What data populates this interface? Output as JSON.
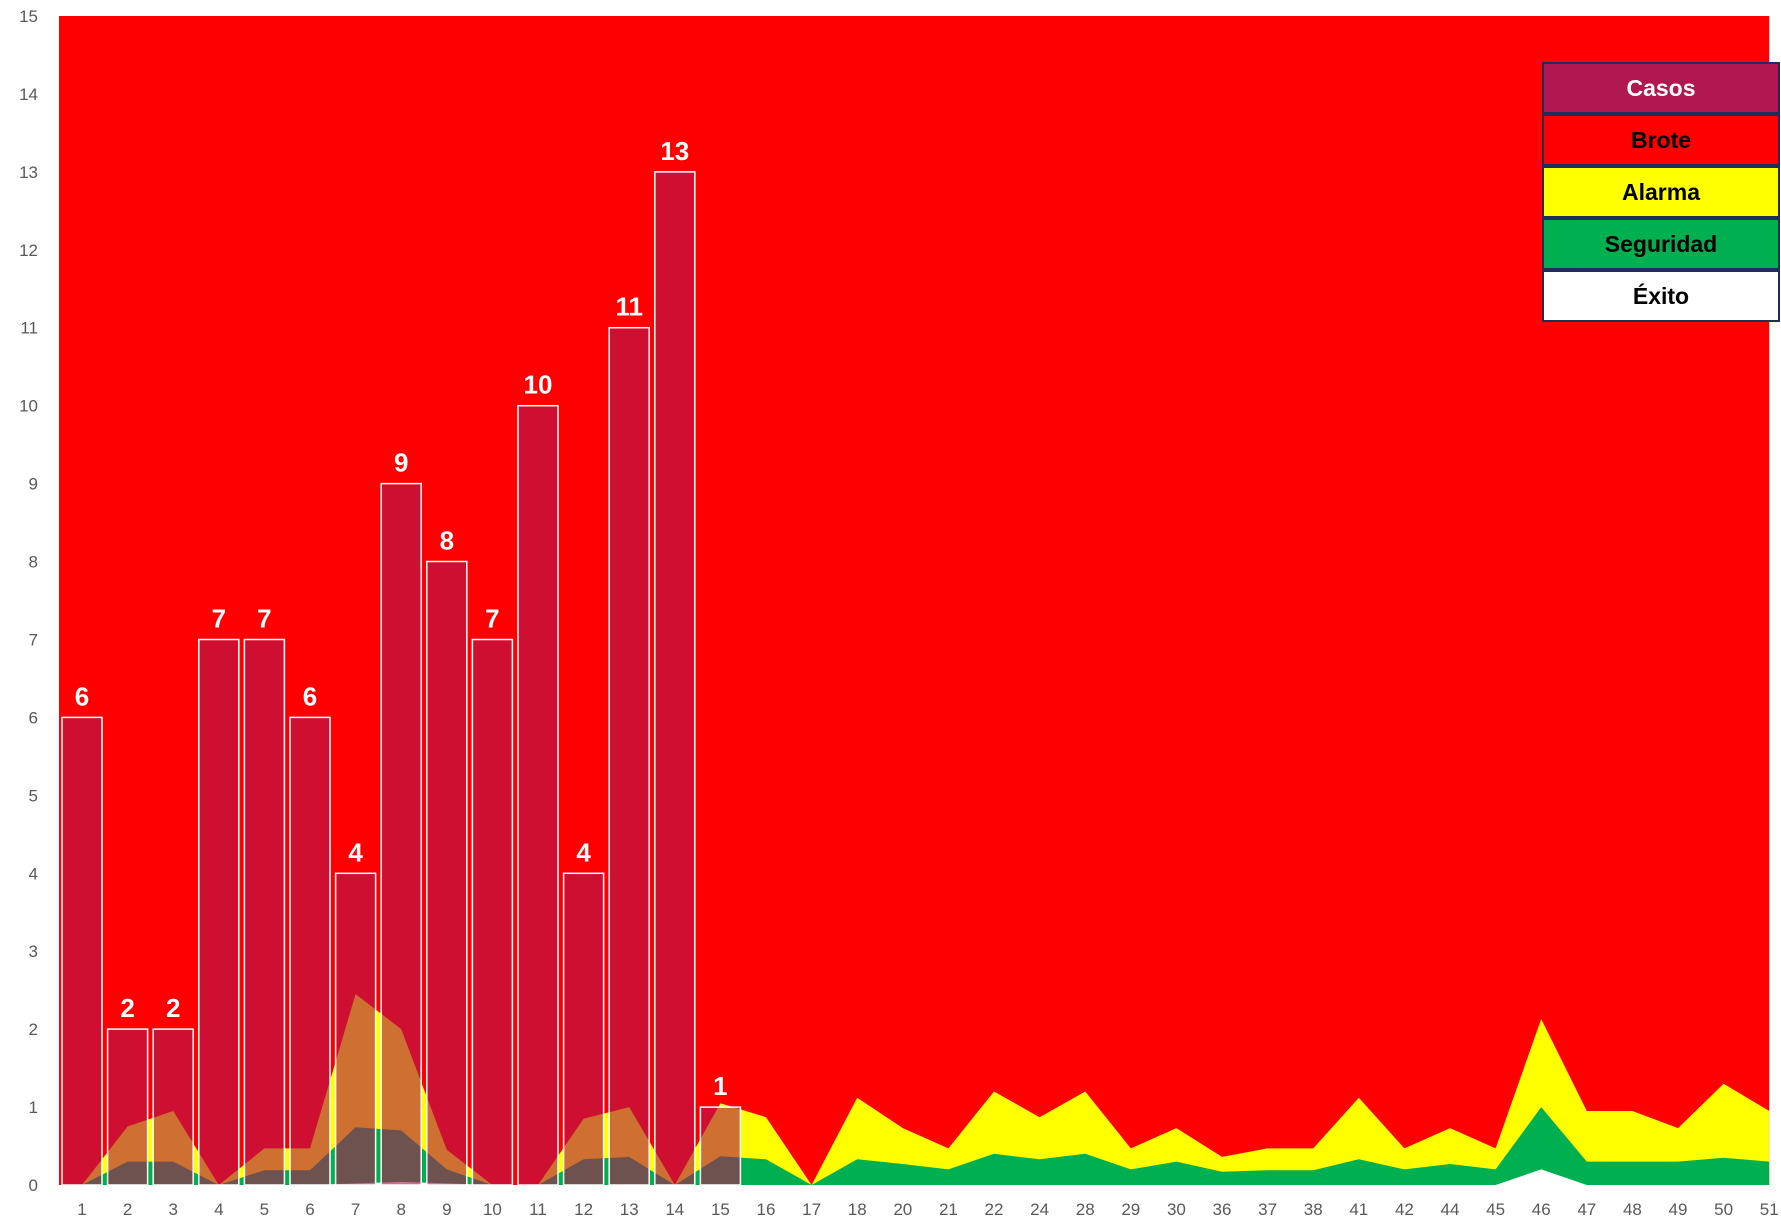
{
  "chart_data": {
    "type": "bar",
    "categories": [
      "1",
      "2",
      "3",
      "4",
      "5",
      "6",
      "7",
      "8",
      "9",
      "10",
      "11",
      "12",
      "13",
      "14",
      "15",
      "16",
      "17",
      "18",
      "20",
      "21",
      "22",
      "24",
      "28",
      "29",
      "30",
      "36",
      "37",
      "38",
      "41",
      "42",
      "44",
      "45",
      "46",
      "47",
      "48",
      "49",
      "50",
      "51"
    ],
    "series": [
      {
        "name": "Casos",
        "type": "bar",
        "color": "#b0184f",
        "values": [
          6,
          2,
          2,
          7,
          7,
          6,
          4,
          9,
          8,
          7,
          10,
          4,
          11,
          13,
          1,
          0,
          0,
          0,
          0,
          0,
          0,
          0,
          0,
          0,
          0,
          0,
          0,
          0,
          0,
          0,
          0,
          0,
          0,
          0,
          0,
          0,
          0,
          0
        ],
        "data_labels": [
          "6",
          "2",
          "2",
          "7",
          "7",
          "6",
          "4",
          "9",
          "8",
          "7",
          "10",
          "4",
          "11",
          "13",
          "1",
          "",
          "",
          "",
          "",
          "",
          "",
          "",
          "",
          "",
          "",
          "",
          "",
          "",
          "",
          "",
          "",
          "",
          "",
          "",
          "",
          "",
          "",
          ""
        ]
      },
      {
        "name": "Brote",
        "type": "area",
        "color": "#ff0000",
        "values": [
          15,
          15,
          15,
          15,
          15,
          15,
          15,
          15,
          15,
          15,
          15,
          15,
          15,
          15,
          15,
          15,
          15,
          15,
          15,
          15,
          15,
          15,
          15,
          15,
          15,
          15,
          15,
          15,
          15,
          15,
          15,
          15,
          15,
          15,
          15,
          15,
          15,
          15
        ]
      },
      {
        "name": "Alarma",
        "type": "area",
        "color": "#ffff00",
        "values": [
          0,
          0.75,
          0.95,
          0,
          0.47,
          0.47,
          2.45,
          2.0,
          0.45,
          0,
          0,
          0.85,
          1.0,
          0,
          1.05,
          0.87,
          0,
          1.12,
          0.73,
          0.47,
          1.2,
          0.87,
          1.2,
          0.47,
          0.73,
          0.36,
          0.47,
          0.47,
          1.12,
          0.47,
          0.73,
          0.47,
          2.13,
          0.95,
          0.95,
          0.73,
          1.3,
          0.95
        ]
      },
      {
        "name": "Seguridad",
        "type": "area",
        "color": "#00b050",
        "values": [
          0,
          0.3,
          0.3,
          0,
          0.19,
          0.19,
          0.74,
          0.7,
          0.2,
          0,
          0,
          0.33,
          0.36,
          0,
          0.37,
          0.33,
          0,
          0.33,
          0.27,
          0.2,
          0.4,
          0.33,
          0.4,
          0.2,
          0.3,
          0.17,
          0.19,
          0.19,
          0.33,
          0.2,
          0.27,
          0.2,
          1.0,
          0.3,
          0.3,
          0.3,
          0.35,
          0.3
        ]
      },
      {
        "name": "Éxito",
        "type": "area",
        "color": "#ffffff",
        "values": [
          0,
          0,
          0,
          0,
          0,
          0,
          0.02,
          0.04,
          0.02,
          0,
          0,
          0,
          0,
          0,
          0,
          0,
          0,
          0,
          0,
          0,
          0,
          0,
          0,
          0,
          0,
          0,
          0,
          0,
          0,
          0,
          0,
          0,
          0.2,
          0,
          0,
          0,
          0,
          0
        ]
      }
    ],
    "yaxis": {
      "ylim": [
        0,
        15
      ],
      "ticks": [
        "0",
        "1",
        "2",
        "3",
        "4",
        "5",
        "6",
        "7",
        "8",
        "9",
        "10",
        "11",
        "12",
        "13",
        "14",
        "15"
      ]
    },
    "legend": {
      "position": "top-right",
      "items": [
        {
          "label": "Casos",
          "bg": "#b0184f",
          "fg": "#ffffff"
        },
        {
          "label": "Brote",
          "bg": "#ff0000",
          "fg": "#000000"
        },
        {
          "label": "Alarma",
          "bg": "#ffff00",
          "fg": "#000000"
        },
        {
          "label": "Seguridad",
          "bg": "#00b050",
          "fg": "#000000"
        },
        {
          "label": "Éxito",
          "bg": "#ffffff",
          "fg": "#000000"
        }
      ]
    },
    "grid": false,
    "title": "",
    "xlabel": "",
    "ylabel": ""
  }
}
